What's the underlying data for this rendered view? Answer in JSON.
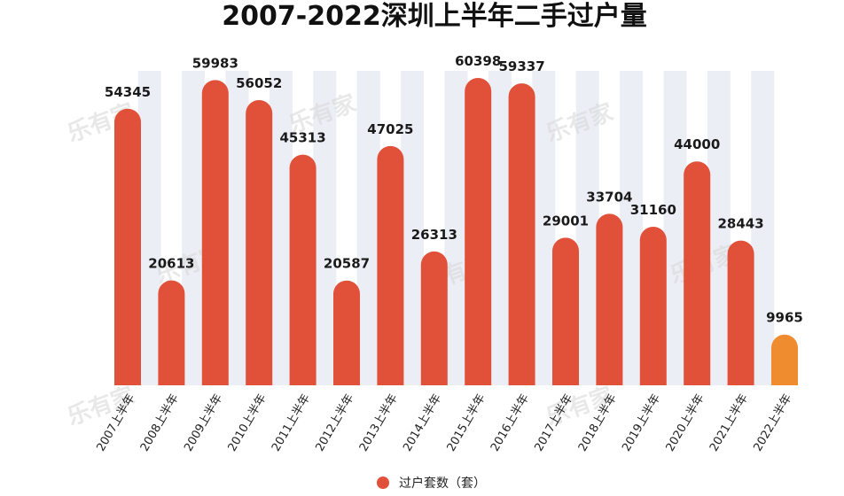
{
  "chart_data": {
    "type": "bar",
    "title": "2007-2022深圳上半年二手过户量",
    "categories": [
      "2007上半年",
      "2008上半年",
      "2009上半年",
      "2010上半年",
      "2011上半年",
      "2012上半年",
      "2013上半年",
      "2014上半年",
      "2015上半年",
      "2016上半年",
      "2017上半年",
      "2018上半年",
      "2019上半年",
      "2020上半年",
      "2021上半年",
      "2022上半年"
    ],
    "series": [
      {
        "name": "过户套数（套）",
        "values": [
          54345,
          20613,
          59983,
          56052,
          45313,
          20587,
          47025,
          26313,
          60398,
          59337,
          29001,
          33704,
          31160,
          44000,
          28443,
          9965
        ]
      }
    ],
    "ylim": [
      0,
      60398
    ],
    "grid": false,
    "legend_position": "bottom",
    "colors": {
      "bar": "#e1513a",
      "highlight": "#ef8c2f",
      "background_column": "#eceef5"
    },
    "highlight_index": 15
  },
  "watermark": "乐有家"
}
